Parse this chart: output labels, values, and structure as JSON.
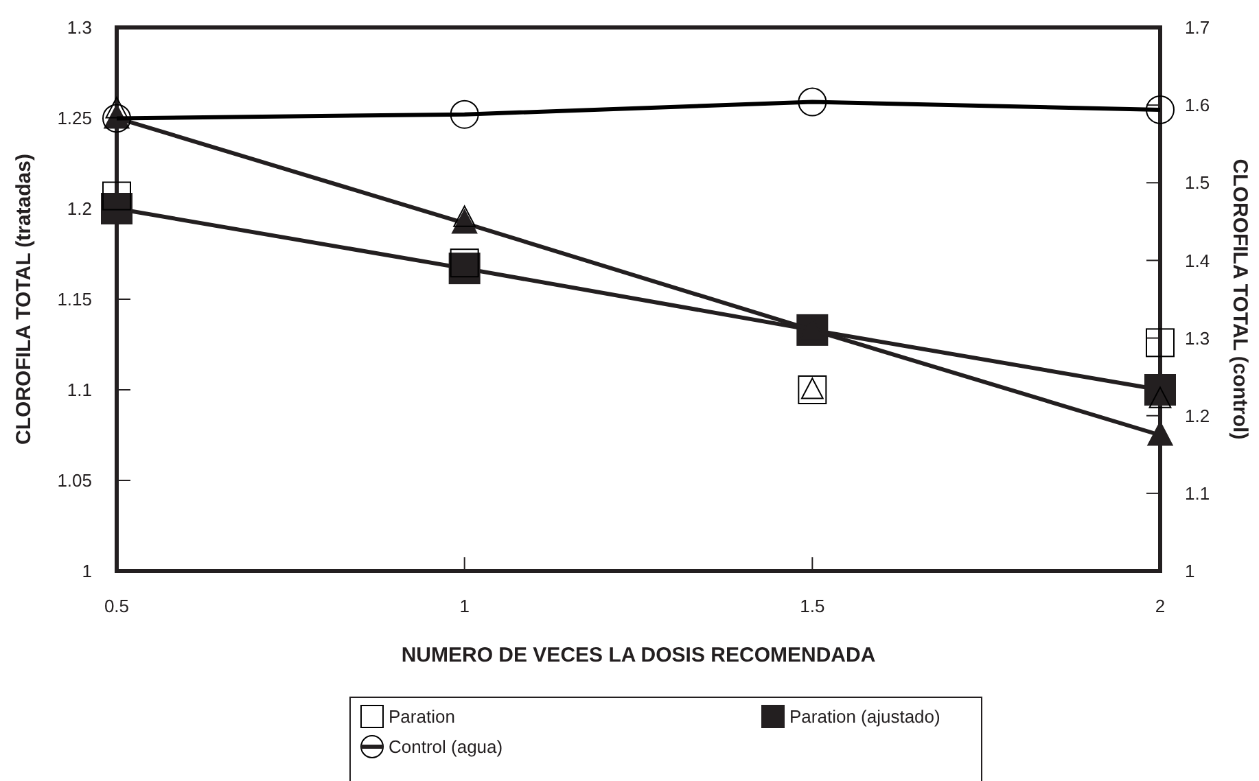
{
  "chart_data": {
    "type": "line",
    "xlabel": "NUMERO DE VECES LA DOSIS RECOMENDADA",
    "ylabel": "CLOROFILA TOTAL (tratadas)",
    "y2label": "CLOROFILA TOTAL (control)",
    "x": [
      0.5,
      1,
      1.5,
      2
    ],
    "xlim": [
      0.5,
      2
    ],
    "xticks": [
      0.5,
      1,
      1.5,
      2
    ],
    "ylim": [
      1,
      1.3
    ],
    "yticks": [
      1,
      1.05,
      1.1,
      1.15,
      1.2,
      1.25,
      1.3
    ],
    "y2lim": [
      1,
      1.7
    ],
    "y2ticks": [
      1,
      1.1,
      1.2,
      1.3,
      1.4,
      1.5,
      1.6,
      1.7
    ],
    "legend": "bottom",
    "grid": false,
    "series": [
      {
        "name": "Paration",
        "type": "scatter",
        "marker": "square",
        "color": "#000000",
        "values": [
          1.207,
          1.17,
          1.1,
          1.126
        ]
      },
      {
        "type": "scatter",
        "marker": "triangle",
        "color": "#000000",
        "values": [
          1.255,
          1.195,
          1.1,
          1.095
        ]
      },
      {
        "name": "Control (agua)",
        "type": "line",
        "marker": "circle",
        "color": "#000000",
        "axis": "y2",
        "values": [
          1.583,
          1.588,
          1.604,
          1.594
        ]
      },
      {
        "name": "Paration (ajustado)",
        "marker": "square",
        "color": "#231f20",
        "values": [
          1.2,
          1.167,
          1.133,
          1.1
        ]
      },
      {
        "marker": "triangle",
        "color": "#231f20",
        "values": [
          1.25,
          1.192,
          1.133,
          1.075
        ]
      }
    ]
  }
}
